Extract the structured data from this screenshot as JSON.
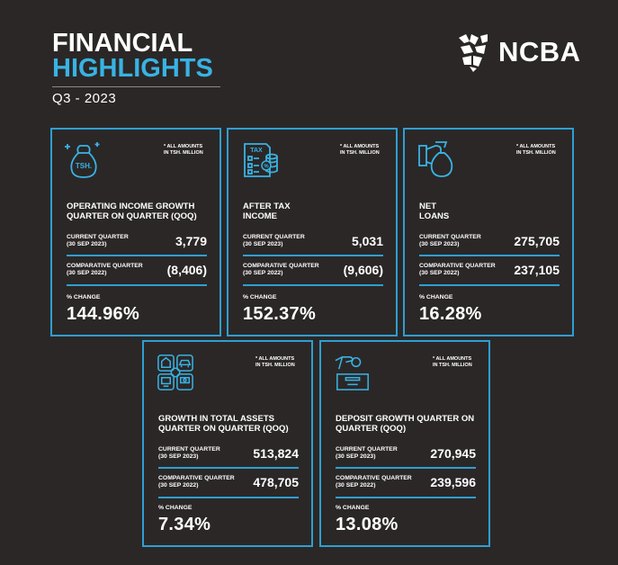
{
  "header": {
    "title_line1": "FINANCIAL",
    "title_line2": "HIGHLIGHTS",
    "period": "Q3 - 2023",
    "logo_text": "NCBA"
  },
  "colors": {
    "background": "#2b2727",
    "accent": "#38b3e3",
    "border": "#2e9fd1"
  },
  "cards": [
    {
      "icon": "money-bag-icon",
      "icon_text": "TSH.",
      "note": "* ALL AMOUNTS IN TSH. MILLION",
      "heading": "OPERATING INCOME GROWTH QUARTER ON QUARTER (QOQ)",
      "current_label": "CURRENT QUARTER",
      "current_date": "(30 SEP 2023)",
      "current_value": "3,779",
      "comparative_label": "COMPARATIVE QUARTER",
      "comparative_date": "(30 SEP 2022)",
      "comparative_value": "(8,406)",
      "change_label": "% CHANGE",
      "change_value": "144.96%"
    },
    {
      "icon": "tax-document-icon",
      "icon_text": "TAX",
      "note": "* ALL AMOUNTS IN TSH. MILLION",
      "heading": "AFTER TAX INCOME",
      "current_label": "CURRENT QUARTER",
      "current_date": "(30 SEP 2023)",
      "current_value": "5,031",
      "comparative_label": "COMPARATIVE QUARTER",
      "comparative_date": "(30 SEP 2022)",
      "comparative_value": "(9,606)",
      "change_label": "% CHANGE",
      "change_value": "152.37%"
    },
    {
      "icon": "hand-money-bag-icon",
      "icon_text": "",
      "note": "* ALL AMOUNTS IN TSH. MILLION",
      "heading": "NET LOANS",
      "current_label": "CURRENT QUARTER",
      "current_date": "(30 SEP 2023)",
      "current_value": "275,705",
      "comparative_label": "COMPARATIVE QUARTER",
      "comparative_date": "(30 SEP 2022)",
      "comparative_value": "237,105",
      "change_label": "% CHANGE",
      "change_value": "16.28%"
    },
    {
      "icon": "assets-grid-icon",
      "icon_text": "",
      "note": "* ALL AMOUNTS IN TSH. MILLION",
      "heading": "GROWTH IN TOTAL ASSETS QUARTER ON QUARTER (QOQ)",
      "current_label": "CURRENT QUARTER",
      "current_date": "(30 SEP 2023)",
      "current_value": "513,824",
      "comparative_label": "COMPARATIVE QUARTER",
      "comparative_date": "(30 SEP 2022)",
      "comparative_value": "478,705",
      "change_label": "% CHANGE",
      "change_value": "7.34%"
    },
    {
      "icon": "deposit-box-icon",
      "icon_text": "",
      "note": "* ALL AMOUNTS IN TSH. MILLION",
      "heading": "DEPOSIT GROWTH QUARTER ON QUARTER (QOQ)",
      "current_label": "CURRENT QUARTER",
      "current_date": "(30 SEP 2023)",
      "current_value": "270,945",
      "comparative_label": "COMPARATIVE QUARTER",
      "comparative_date": "(30 SEP 2022)",
      "comparative_value": "239,596",
      "change_label": "% CHANGE",
      "change_value": "13.08%"
    }
  ]
}
